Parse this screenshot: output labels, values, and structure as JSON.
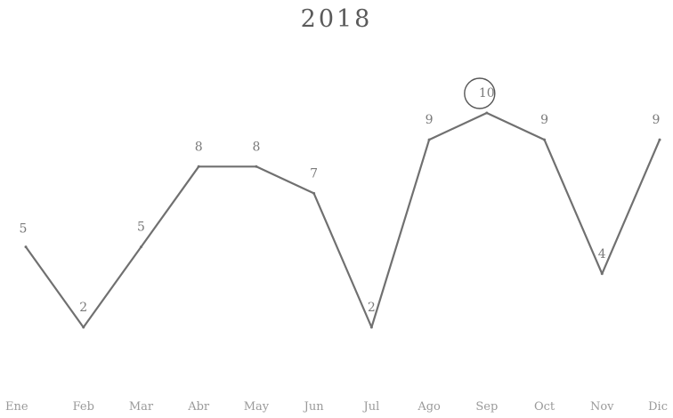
{
  "chart_data": {
    "type": "line",
    "title": "2018",
    "categories": [
      "Ene",
      "Feb",
      "Mar",
      "Abr",
      "May",
      "Jun",
      "Jul",
      "Ago",
      "Sep",
      "Oct",
      "Nov",
      "Dic"
    ],
    "series": [
      {
        "values": [
          5,
          2,
          5,
          8,
          8,
          7,
          2,
          9,
          10,
          9,
          4,
          9
        ]
      }
    ],
    "data_labels": [
      "5",
      "2",
      "5",
      "8",
      "8",
      "7",
      "2",
      "9",
      "10",
      "9",
      "4",
      "9"
    ],
    "highlighted_point": {
      "category": "Sep",
      "value": 10,
      "marker": "circle"
    },
    "xlabel": "",
    "ylabel": "",
    "ylim": [
      2,
      10
    ],
    "grid": false,
    "legend": "none",
    "colors": {
      "line": "#707070",
      "highlight": "#555555",
      "text": "#8a8a8a"
    }
  }
}
